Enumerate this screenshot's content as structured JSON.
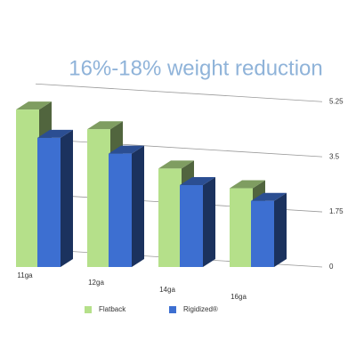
{
  "chart_data": {
    "type": "bar3d",
    "title": "16%-18% weight reduction",
    "categories": [
      "11ga",
      "12ga",
      "14ga",
      "16ga"
    ],
    "series": [
      {
        "name": "Flatback",
        "color": "#b5e08a",
        "values": [
          5.0,
          4.375,
          3.125,
          2.5
        ]
      },
      {
        "name": "Rigidized®",
        "color": "#3d6fd1",
        "values": [
          4.1,
          3.6,
          2.6,
          2.1
        ]
      }
    ],
    "ylim": [
      0,
      6.5
    ],
    "yticks": [
      0,
      1.75,
      3.5,
      5.25
    ],
    "grid": true
  }
}
